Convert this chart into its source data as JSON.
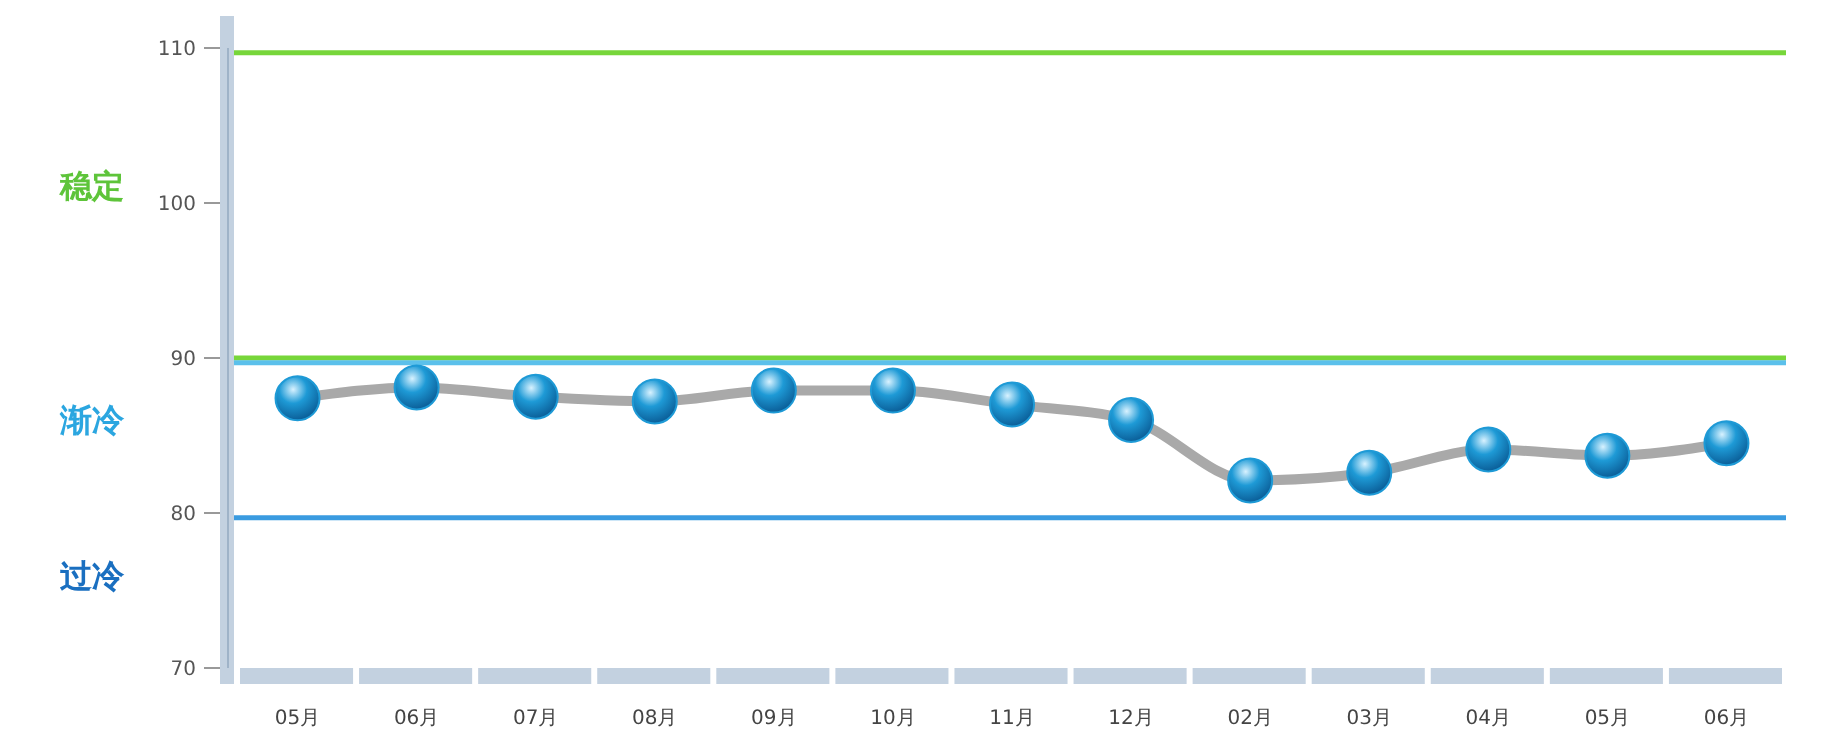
{
  "chart_data": {
    "type": "line",
    "categories": [
      "05月",
      "06月",
      "07月",
      "08月",
      "09月",
      "10月",
      "11月",
      "12月",
      "02月",
      "03月",
      "04月",
      "05月",
      "06月"
    ],
    "series": [
      {
        "color": "#1e9ad6",
        "values": [
          87.4,
          88.1,
          87.5,
          87.2,
          87.9,
          87.9,
          87.0,
          86.0,
          82.1,
          82.6,
          84.1,
          83.7,
          84.5
        ]
      }
    ],
    "ylim": [
      70,
      110
    ],
    "yticks": [
      70,
      80,
      90,
      100,
      110
    ],
    "grid": false,
    "marker": "circle",
    "line_style": "solid",
    "ref_lines": [
      {
        "axis": "y",
        "value": 109.7,
        "color": "#77d63a"
      },
      {
        "axis": "y",
        "value": 90,
        "color": "#77d63a"
      },
      {
        "axis": "y",
        "value": 89.7,
        "color": "#5bc0eb"
      },
      {
        "axis": "y",
        "value": 79.7,
        "color": "#3a9be0"
      }
    ],
    "annotations": [
      "稳定",
      "渐冷",
      "过冷"
    ]
  }
}
